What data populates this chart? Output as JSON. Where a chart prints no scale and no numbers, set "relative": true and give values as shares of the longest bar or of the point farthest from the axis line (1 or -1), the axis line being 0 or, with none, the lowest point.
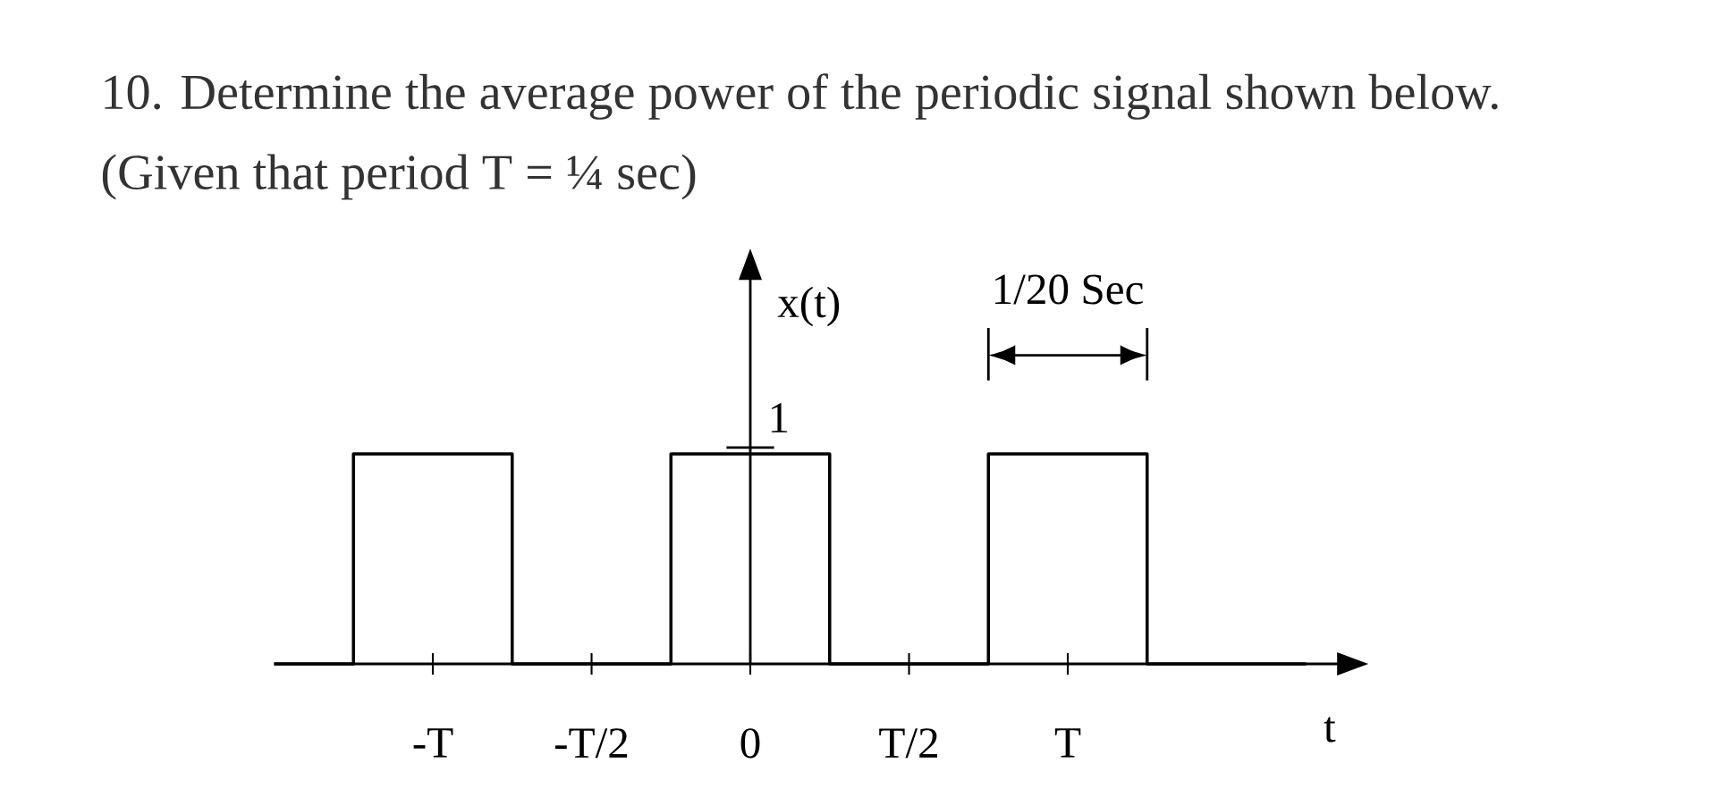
{
  "chart_data": {
    "type": "step",
    "title": "10. Determine the average power of the periodic signal shown below.",
    "subtitle": "(Given that period T = ¼ sec)",
    "xlabel": "t",
    "ylabel": "x(t)",
    "categories": [
      null,
      null,
      "-T",
      null,
      "-T/2",
      null,
      "0",
      null,
      "T/2",
      null,
      "T",
      null,
      null,
      null
    ],
    "values": [
      0,
      1,
      1,
      0,
      0,
      1,
      1,
      0,
      0,
      1,
      1,
      0,
      0,
      0
    ],
    "color": "#000000",
    "relative": true,
    "annotations": [
      "1/20 Sec",
      "1"
    ]
  }
}
